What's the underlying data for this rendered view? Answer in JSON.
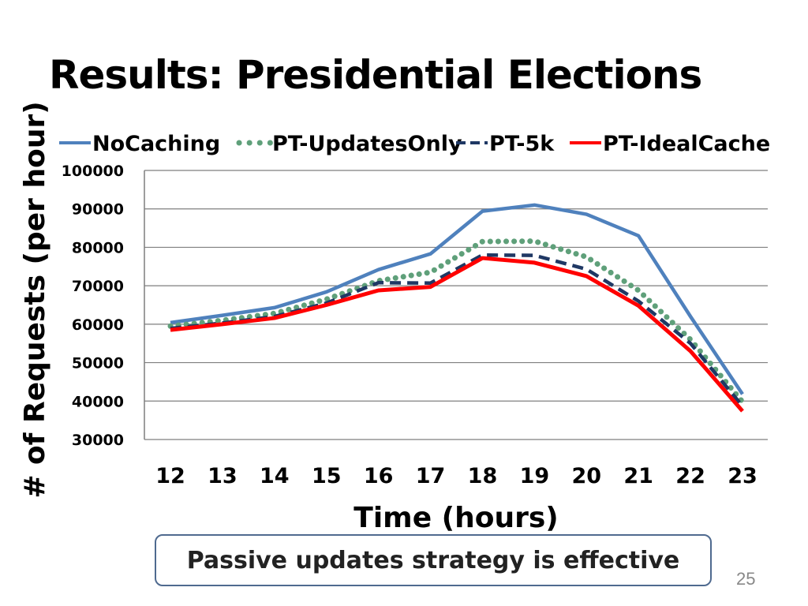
{
  "slide": {
    "title": "Results: Presidential Elections",
    "callout": "Passive updates strategy is effective",
    "page_number": "25"
  },
  "chart_data": {
    "type": "line",
    "title": "",
    "xlabel": "Time (hours)",
    "ylabel": "# of Requests (per hour)",
    "x": [
      12,
      13,
      14,
      15,
      16,
      17,
      18,
      19,
      20,
      21,
      22,
      23
    ],
    "ylim": [
      30000,
      100000
    ],
    "yticks": [
      30000,
      40000,
      50000,
      60000,
      70000,
      80000,
      90000,
      100000
    ],
    "grid": true,
    "legend": "top",
    "series": [
      {
        "name": "NoCaching",
        "color": "#4f81bd",
        "style": "solid",
        "values": [
          60400,
          62300,
          64300,
          68400,
          74200,
          78300,
          89400,
          91000,
          88600,
          83000,
          62000,
          41800
        ]
      },
      {
        "name": "PT-UpdatesOnly",
        "color": "#5fa07a",
        "style": "dotted",
        "values": [
          59500,
          61000,
          62800,
          66500,
          71300,
          73500,
          81500,
          81600,
          77500,
          68800,
          56000,
          39800
        ]
      },
      {
        "name": "PT-5k",
        "color": "#1f3864",
        "style": "dashed",
        "values": [
          58900,
          60300,
          62000,
          65500,
          70800,
          70700,
          78000,
          77900,
          74300,
          66000,
          55000,
          38700
        ]
      },
      {
        "name": "PT-IdealCache",
        "color": "#ff0000",
        "style": "solid",
        "values": [
          58500,
          60000,
          61600,
          65000,
          68800,
          69700,
          77200,
          76000,
          72500,
          64800,
          53000,
          37400
        ]
      }
    ]
  }
}
